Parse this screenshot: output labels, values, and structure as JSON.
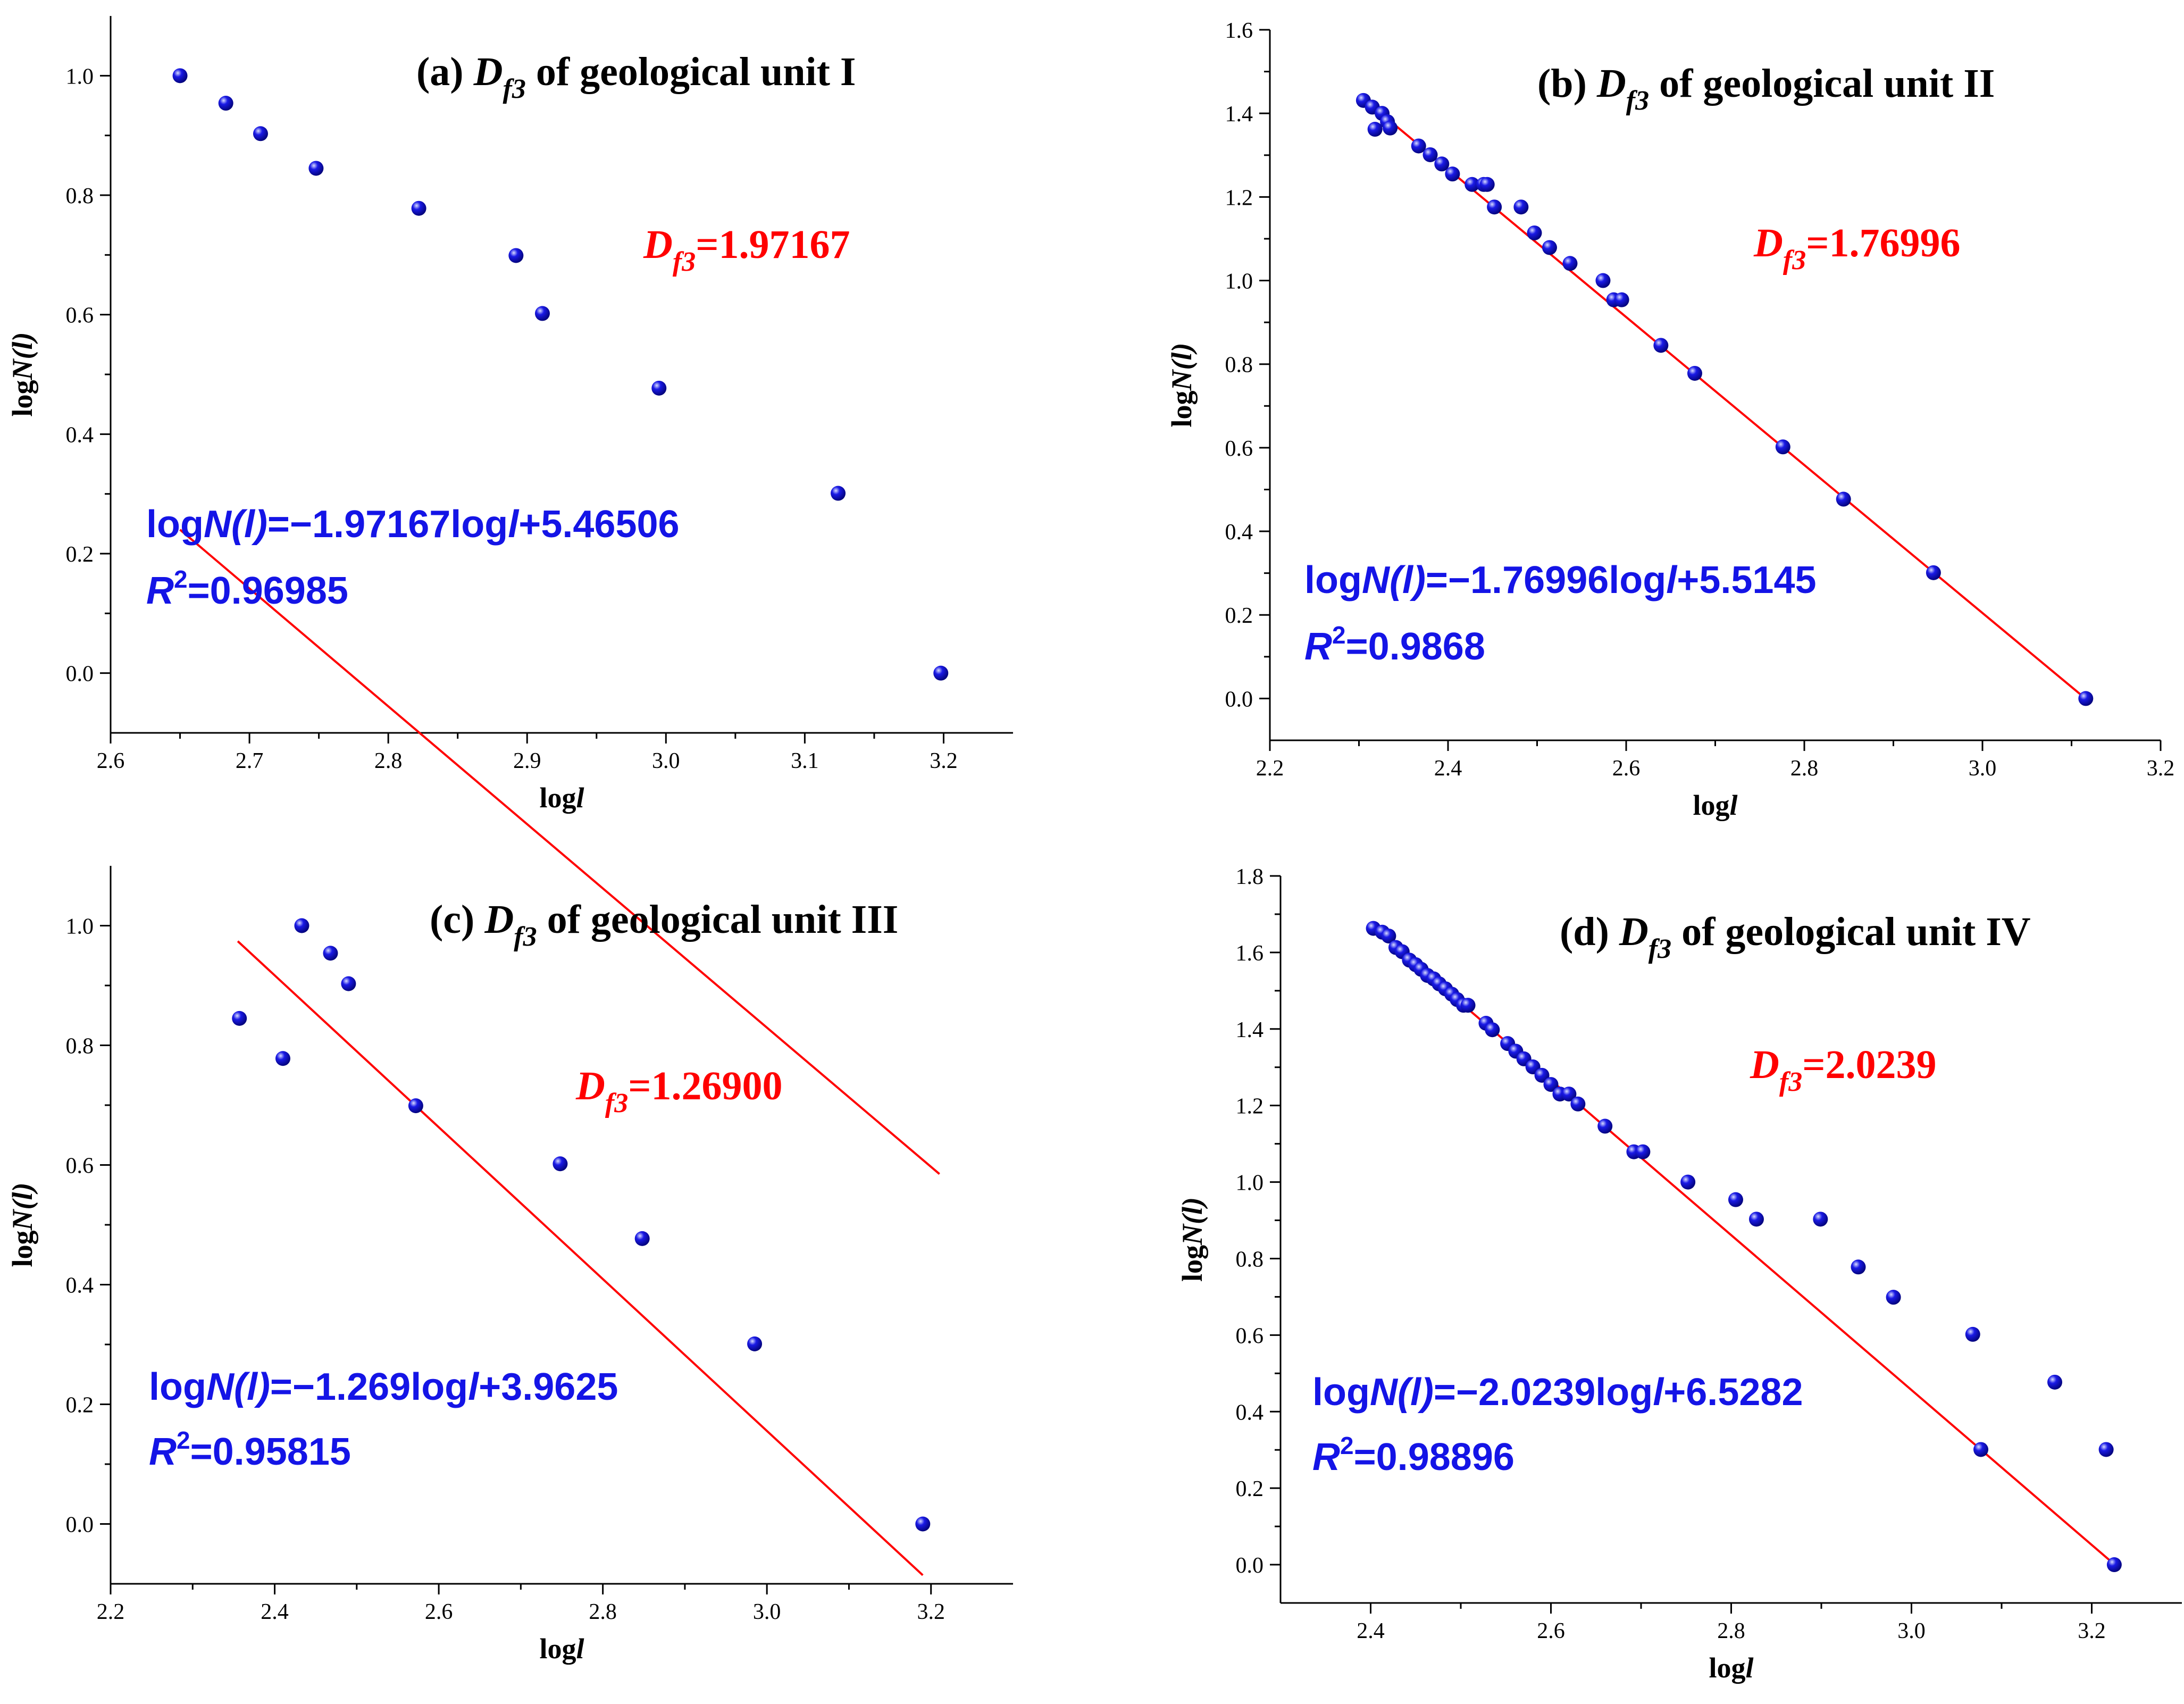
{
  "colors": {
    "point": "#1a1ae6",
    "fit": "#ff0000",
    "equation": "#1414e6",
    "axis": "#000000"
  },
  "chart_data": [
    {
      "id": "a",
      "type": "scatter",
      "title": {
        "prefix": "(a) ",
        "sym": "D",
        "sub": "f3",
        "suffix": " of geological unit I"
      },
      "xlabel": {
        "pre": "log",
        "it": "l"
      },
      "ylabel": {
        "pre": "log",
        "it": "N(l)"
      },
      "xlim": [
        2.6,
        3.25
      ],
      "ylim": [
        -0.1,
        1.1
      ],
      "xticks": [
        "2.6",
        "2.7",
        "2.8",
        "2.9",
        "3.0",
        "3.1",
        "3.2"
      ],
      "yticks": [
        "0.0",
        "0.2",
        "0.4",
        "0.6",
        "0.8",
        "1.0"
      ],
      "x": [
        2.65,
        2.683,
        2.708,
        2.748,
        2.822,
        2.892,
        2.911,
        2.995,
        3.124,
        3.198
      ],
      "y": [
        1.0,
        0.954,
        0.903,
        0.845,
        0.778,
        0.699,
        0.602,
        0.477,
        0.301,
        0.0
      ],
      "fit": {
        "x": [
          2.65,
          3.197
        ],
        "slope": -1.97167,
        "intercept": 5.46506
      },
      "df": {
        "sym": "D",
        "sub": "f3",
        "value": "=1.97167"
      },
      "equation": {
        "a": "log",
        "b": "N(l)",
        "c": "=−1.97167log",
        "d": "l",
        "e": "+5.46506"
      },
      "r2": {
        "sym": "R",
        "sup": "2",
        "value": "=0.96985"
      }
    },
    {
      "id": "b",
      "type": "scatter",
      "title": {
        "prefix": "(b) ",
        "sym": "D",
        "sub": "f3",
        "suffix": " of geological unit II"
      },
      "xlabel": {
        "pre": "log",
        "it": "l"
      },
      "ylabel": {
        "pre": "log",
        "it": "N(l)"
      },
      "xlim": [
        2.2,
        3.2
      ],
      "ylim": [
        -0.1,
        1.6
      ],
      "xticks": [
        "2.2",
        "2.4",
        "2.6",
        "2.8",
        "3.0",
        "3.2"
      ],
      "yticks": [
        "0.0",
        "0.2",
        "0.4",
        "0.6",
        "0.8",
        "1.0",
        "1.2",
        "1.4",
        "1.6"
      ],
      "x": [
        2.305,
        2.315,
        2.318,
        2.326,
        2.332,
        2.335,
        2.367,
        2.38,
        2.393,
        2.405,
        2.427,
        2.44,
        2.444,
        2.452,
        2.482,
        2.497,
        2.514,
        2.537,
        2.574,
        2.586,
        2.595,
        2.639,
        2.677,
        2.776,
        2.844,
        2.945,
        3.116
      ],
      "y": [
        1.431,
        1.415,
        1.362,
        1.4,
        1.38,
        1.365,
        1.322,
        1.301,
        1.279,
        1.255,
        1.23,
        1.23,
        1.23,
        1.176,
        1.176,
        1.114,
        1.079,
        1.041,
        1.0,
        0.954,
        0.954,
        0.845,
        0.778,
        0.602,
        0.477,
        0.301,
        0.0
      ],
      "fit": {
        "x": [
          2.31,
          3.115
        ],
        "slope": -1.76996,
        "intercept": 5.5145
      },
      "df": {
        "sym": "D",
        "sub": "f3",
        "value": "=1.76996"
      },
      "equation": {
        "a": "log",
        "b": "N(l)",
        "c": "=−1.76996log",
        "d": "l",
        "e": "+5.5145"
      },
      "r2": {
        "sym": "R",
        "sup": "2",
        "value": "=0.9868"
      }
    },
    {
      "id": "c",
      "type": "scatter",
      "title": {
        "prefix": "(c) ",
        "sym": "D",
        "sub": "f3",
        "suffix": " of geological unit III"
      },
      "xlabel": {
        "pre": "log",
        "it": "l"
      },
      "ylabel": {
        "pre": "log",
        "it": "N(l)"
      },
      "xlim": [
        2.2,
        3.3
      ],
      "ylim": [
        -0.1,
        1.1
      ],
      "xticks": [
        "2.2",
        "2.4",
        "2.6",
        "2.8",
        "3.0",
        "3.2"
      ],
      "yticks": [
        "0.0",
        "0.2",
        "0.4",
        "0.6",
        "0.8",
        "1.0"
      ],
      "x": [
        2.357,
        2.41,
        2.433,
        2.468,
        2.49,
        2.572,
        2.748,
        2.848,
        2.985,
        3.19
      ],
      "y": [
        0.845,
        0.778,
        1.0,
        0.954,
        0.903,
        0.699,
        0.602,
        0.477,
        0.301,
        0.0
      ],
      "fit": {
        "x": [
          2.355,
          3.19
        ],
        "slope": -1.269,
        "intercept": 3.9625
      },
      "df": {
        "sym": "D",
        "sub": "f3",
        "value": "=1.26900"
      },
      "equation": {
        "a": "log",
        "b": "N(l)",
        "c": "=−1.269log",
        "d": "l",
        "e": "+3.9625"
      },
      "r2": {
        "sym": "R",
        "sup": "2",
        "value": "=0.95815"
      }
    },
    {
      "id": "d",
      "type": "scatter",
      "title": {
        "prefix": "(d) ",
        "sym": "D",
        "sub": "f3",
        "suffix": " of geological unit IV"
      },
      "xlabel": {
        "pre": "log",
        "it": "l"
      },
      "ylabel": {
        "pre": "log",
        "it": "N(l)"
      },
      "xlim": [
        2.3,
        3.3
      ],
      "ylim": [
        -0.1,
        1.8
      ],
      "xticks": [
        "2.4",
        "2.6",
        "2.8",
        "3.0",
        "3.2"
      ],
      "yticks": [
        "0.0",
        "0.2",
        "0.4",
        "0.6",
        "0.8",
        "1.0",
        "1.2",
        "1.4",
        "1.6",
        "1.8"
      ],
      "x": [
        2.403,
        2.413,
        2.42,
        2.428,
        2.435,
        2.443,
        2.45,
        2.456,
        2.463,
        2.47,
        2.476,
        2.483,
        2.49,
        2.496,
        2.503,
        2.508,
        2.528,
        2.535,
        2.552,
        2.561,
        2.57,
        2.58,
        2.59,
        2.6,
        2.61,
        2.62,
        2.63,
        2.66,
        2.692,
        2.702,
        2.752,
        2.805,
        2.828,
        2.899,
        2.941,
        2.98,
        3.068,
        3.077,
        3.159,
        3.216,
        3.225
      ],
      "y": [
        1.663,
        1.653,
        1.643,
        1.613,
        1.602,
        1.58,
        1.568,
        1.556,
        1.54,
        1.531,
        1.518,
        1.505,
        1.491,
        1.477,
        1.462,
        1.462,
        1.415,
        1.398,
        1.362,
        1.342,
        1.322,
        1.301,
        1.279,
        1.255,
        1.23,
        1.23,
        1.204,
        1.146,
        1.079,
        1.079,
        1.0,
        0.954,
        0.903,
        0.903,
        0.778,
        0.699,
        0.602,
        0.301,
        0.477,
        0.301,
        0.0
      ],
      "fit": {
        "x": [
          2.4,
          3.222
        ],
        "slope": -2.0239,
        "intercept": 6.5282
      },
      "df": {
        "sym": "D",
        "sub": "f3",
        "value": "=2.0239"
      },
      "equation": {
        "a": "log",
        "b": "N(l)",
        "c": "=−2.0239log",
        "d": "l",
        "e": "+6.5282"
      },
      "r2": {
        "sym": "R",
        "sup": "2",
        "value": "=0.98896"
      }
    }
  ]
}
